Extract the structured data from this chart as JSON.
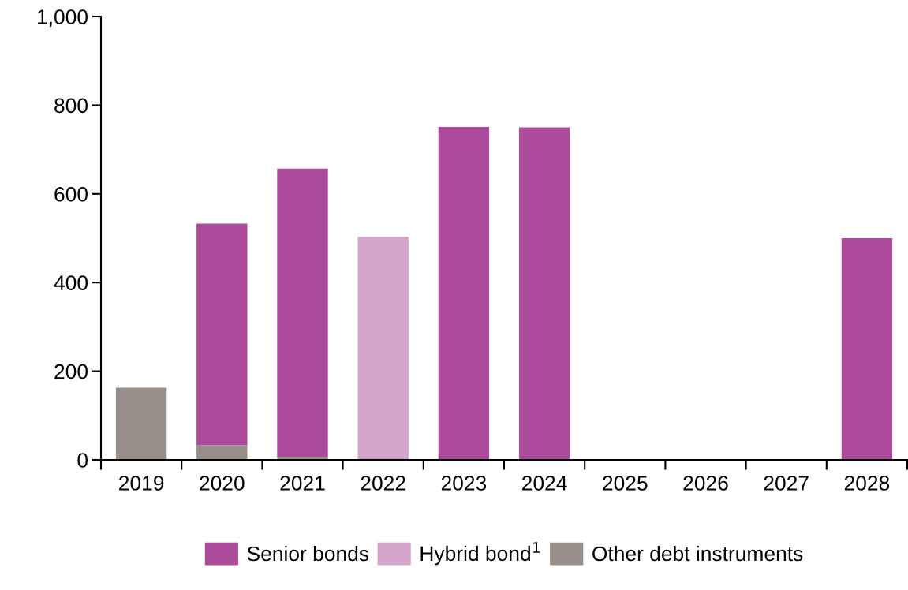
{
  "chart_data": {
    "type": "bar",
    "stacked": true,
    "categories": [
      "2019",
      "2020",
      "2021",
      "2022",
      "2023",
      "2024",
      "2025",
      "2026",
      "2027",
      "2028"
    ],
    "series": [
      {
        "name": "Other debt instruments",
        "color": "#968f89",
        "values": [
          163,
          33,
          7,
          3,
          0,
          0,
          0,
          0,
          0,
          0
        ]
      },
      {
        "name": "Hybrid bond$^{1}$",
        "color": "#d5a5cc",
        "values": [
          0,
          0,
          0,
          500,
          0,
          0,
          0,
          0,
          0,
          0
        ]
      },
      {
        "name": "Senior bonds",
        "color": "#ac4a9b",
        "values": [
          0,
          500,
          650,
          0,
          751,
          750,
          0,
          0,
          0,
          500
        ]
      }
    ],
    "ylim": [
      0,
      1000
    ],
    "yticks": [
      0,
      200,
      400,
      600,
      800,
      {
        "value": 1000,
        "label": "1,000"
      }
    ],
    "grid": false,
    "legend": "bottom"
  }
}
